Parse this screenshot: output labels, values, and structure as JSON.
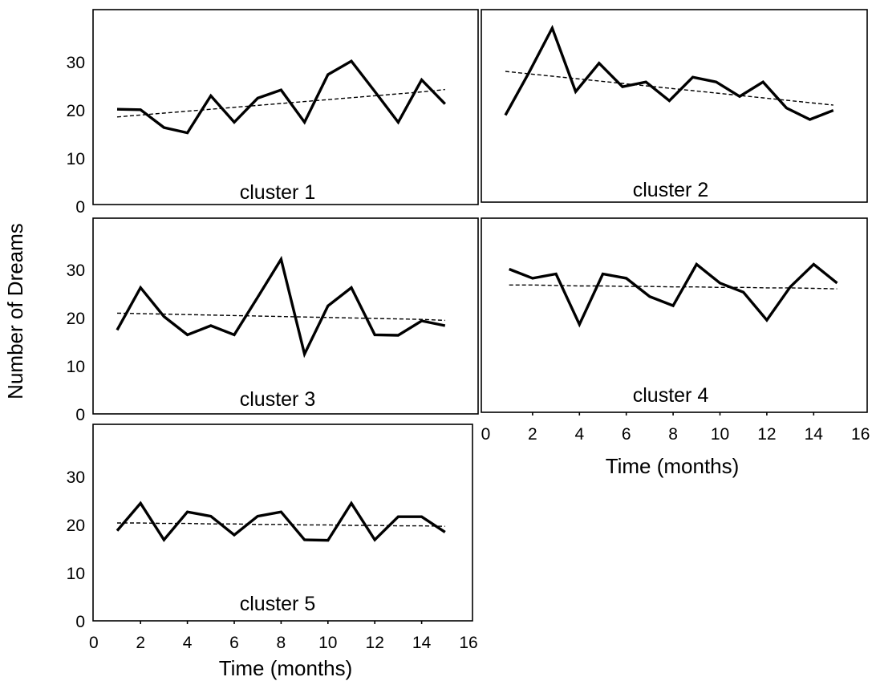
{
  "ylabel": "Number of Dreams",
  "xlabel": "Time (months)",
  "chart_data": [
    {
      "type": "line",
      "title": "cluster 1",
      "x": [
        1,
        2,
        3,
        4,
        5,
        6,
        7,
        8,
        9,
        10,
        11,
        12,
        13,
        14,
        15
      ],
      "series": [
        {
          "values": [
            20.3,
            20.2,
            16.5,
            15.4,
            23.1,
            17.6,
            22.6,
            24.3,
            17.6,
            27.5,
            30.3,
            24.0,
            17.6,
            26.4,
            21.4
          ]
        },
        {
          "values": [
            18.7,
            19.1,
            19.5,
            19.9,
            20.3,
            20.7,
            21.1,
            21.5,
            21.9,
            22.3,
            22.7,
            23.1,
            23.5,
            23.9,
            24.4
          ]
        }
      ],
      "xlim": [
        0,
        16
      ],
      "ylim": [
        0,
        40
      ],
      "xticks": [],
      "yticks": [
        0,
        10,
        20,
        30
      ],
      "grid": false
    },
    {
      "type": "line",
      "title": "cluster 2",
      "x": [
        1,
        2,
        3,
        4,
        5,
        6,
        7,
        8,
        9,
        10,
        11,
        12,
        13,
        14,
        15
      ],
      "series": [
        {
          "values": [
            18.5,
            27.3,
            36.6,
            23.4,
            29.3,
            24.4,
            25.4,
            21.5,
            26.4,
            25.4,
            22.4,
            25.4,
            20.0,
            17.6,
            19.5
          ]
        },
        {
          "values": [
            27.6,
            27.1,
            26.6,
            26.1,
            25.6,
            25.1,
            24.6,
            24.1,
            23.6,
            23.1,
            22.6,
            22.1,
            21.6,
            21.1,
            20.6
          ]
        }
      ],
      "xlim": [
        0,
        16
      ],
      "ylim": [
        0,
        40
      ],
      "xticks": [],
      "yticks": [],
      "grid": false
    },
    {
      "type": "line",
      "title": "cluster 3",
      "x": [
        1,
        2,
        3,
        4,
        5,
        6,
        7,
        8,
        9,
        10,
        11,
        12,
        13,
        14,
        15
      ],
      "series": [
        {
          "values": [
            17.6,
            26.4,
            20.4,
            16.6,
            18.5,
            16.6,
            24.4,
            32.3,
            12.6,
            22.6,
            26.4,
            16.6,
            16.5,
            19.5,
            18.5
          ]
        },
        {
          "values": [
            21.1,
            21.0,
            20.9,
            20.8,
            20.7,
            20.6,
            20.5,
            20.4,
            20.3,
            20.2,
            20.1,
            20.0,
            19.9,
            19.8,
            19.6
          ]
        }
      ],
      "xlim": [
        0,
        16
      ],
      "ylim": [
        0,
        40
      ],
      "xticks": [],
      "yticks": [
        0,
        10,
        20,
        30
      ],
      "grid": false
    },
    {
      "type": "line",
      "title": "cluster 4",
      "x": [
        1,
        2,
        3,
        4,
        5,
        6,
        7,
        8,
        9,
        10,
        11,
        12,
        13,
        14,
        15
      ],
      "series": [
        {
          "values": [
            30.0,
            28.1,
            29.0,
            18.5,
            29.0,
            28.1,
            24.3,
            22.4,
            31.0,
            27.1,
            25.2,
            19.4,
            26.3,
            31.0,
            27.1
          ]
        },
        {
          "values": [
            26.7,
            26.7,
            26.6,
            26.5,
            26.5,
            26.4,
            26.4,
            26.3,
            26.3,
            26.2,
            26.2,
            26.1,
            26.1,
            26.0,
            25.9
          ]
        }
      ],
      "xlim": [
        0,
        16
      ],
      "ylim": [
        0,
        40
      ],
      "xticks": [
        0,
        2,
        4,
        6,
        8,
        10,
        12,
        14,
        16
      ],
      "yticks": [],
      "grid": false
    },
    {
      "type": "line",
      "title": "cluster 5",
      "x": [
        1,
        2,
        3,
        4,
        5,
        6,
        7,
        8,
        9,
        10,
        11,
        12,
        13,
        14,
        15
      ],
      "series": [
        {
          "values": [
            18.9,
            24.6,
            17.0,
            22.8,
            21.9,
            18.0,
            21.9,
            22.8,
            17.0,
            16.9,
            24.6,
            17.0,
            21.8,
            21.8,
            18.6
          ]
        },
        {
          "values": [
            20.5,
            20.5,
            20.4,
            20.4,
            20.3,
            20.3,
            20.2,
            20.2,
            20.1,
            20.1,
            20.0,
            20.0,
            19.9,
            19.9,
            19.8
          ]
        }
      ],
      "xlim": [
        0,
        16
      ],
      "ylim": [
        0,
        40
      ],
      "xticks": [
        0,
        2,
        4,
        6,
        8,
        10,
        12,
        14,
        16
      ],
      "yticks": [
        0,
        10,
        20,
        30
      ],
      "grid": false
    }
  ]
}
